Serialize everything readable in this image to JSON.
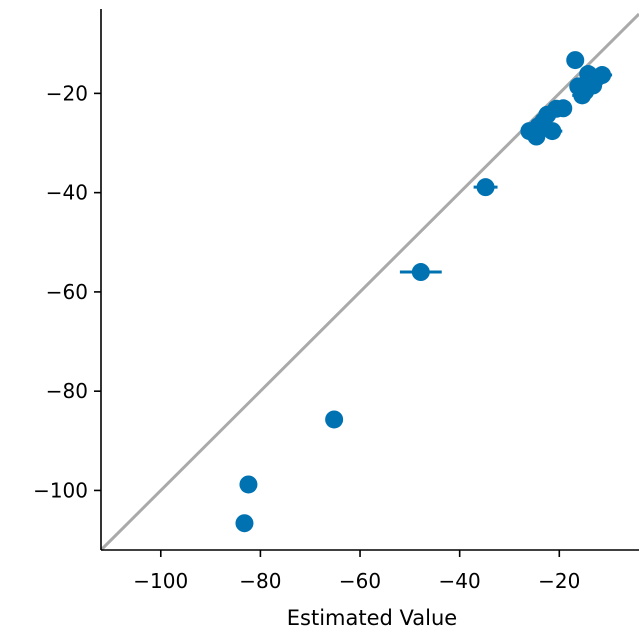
{
  "chart_data": {
    "type": "scatter",
    "title": "",
    "xlabel": "Estimated Value",
    "ylabel": "",
    "xlim": [
      -112,
      -4
    ],
    "ylim": [
      -112,
      -3
    ],
    "x_ticks": [
      -100,
      -80,
      -60,
      -40,
      -20
    ],
    "y_ticks": [
      -100,
      -80,
      -60,
      -40,
      -20
    ],
    "x_tick_labels": [
      "−100",
      "−80",
      "−60",
      "−40",
      "−20"
    ],
    "y_tick_labels": [
      "−100",
      "−80",
      "−60",
      "−40",
      "−20"
    ],
    "grid": false,
    "legend": "none",
    "reference_line": {
      "type": "identity",
      "color": "#aaaaaa"
    },
    "marker_color": "#0072b2",
    "points": [
      {
        "x": -83.2,
        "y": -106.6,
        "xerr": 0
      },
      {
        "x": -82.4,
        "y": -98.8,
        "xerr": 0
      },
      {
        "x": -65.2,
        "y": -85.7,
        "xerr": 0
      },
      {
        "x": -47.8,
        "y": -56.0,
        "xerr": 4.2
      },
      {
        "x": -34.8,
        "y": -38.9,
        "xerr": 2.4
      },
      {
        "x": -26.0,
        "y": -27.6,
        "xerr": 0
      },
      {
        "x": -24.6,
        "y": -28.7,
        "xerr": 0
      },
      {
        "x": -24.2,
        "y": -26.6,
        "xerr": 0
      },
      {
        "x": -23.2,
        "y": -25.6,
        "xerr": 0
      },
      {
        "x": -22.4,
        "y": -24.3,
        "xerr": 0
      },
      {
        "x": -21.4,
        "y": -27.6,
        "xerr": 2.0
      },
      {
        "x": -20.6,
        "y": -23.1,
        "xerr": 0
      },
      {
        "x": -19.2,
        "y": -23.0,
        "xerr": 0
      },
      {
        "x": -16.8,
        "y": -13.3,
        "xerr": 0
      },
      {
        "x": -16.2,
        "y": -18.6,
        "xerr": 0
      },
      {
        "x": -15.4,
        "y": -20.4,
        "xerr": 2.0
      },
      {
        "x": -14.8,
        "y": -19.6,
        "xerr": 0
      },
      {
        "x": -14.2,
        "y": -16.1,
        "xerr": 0
      },
      {
        "x": -13.8,
        "y": -17.6,
        "xerr": 0
      },
      {
        "x": -13.2,
        "y": -18.4,
        "xerr": 0
      },
      {
        "x": -12.4,
        "y": -16.8,
        "xerr": 0
      },
      {
        "x": -11.4,
        "y": -16.3,
        "xerr": 2.0
      }
    ]
  }
}
